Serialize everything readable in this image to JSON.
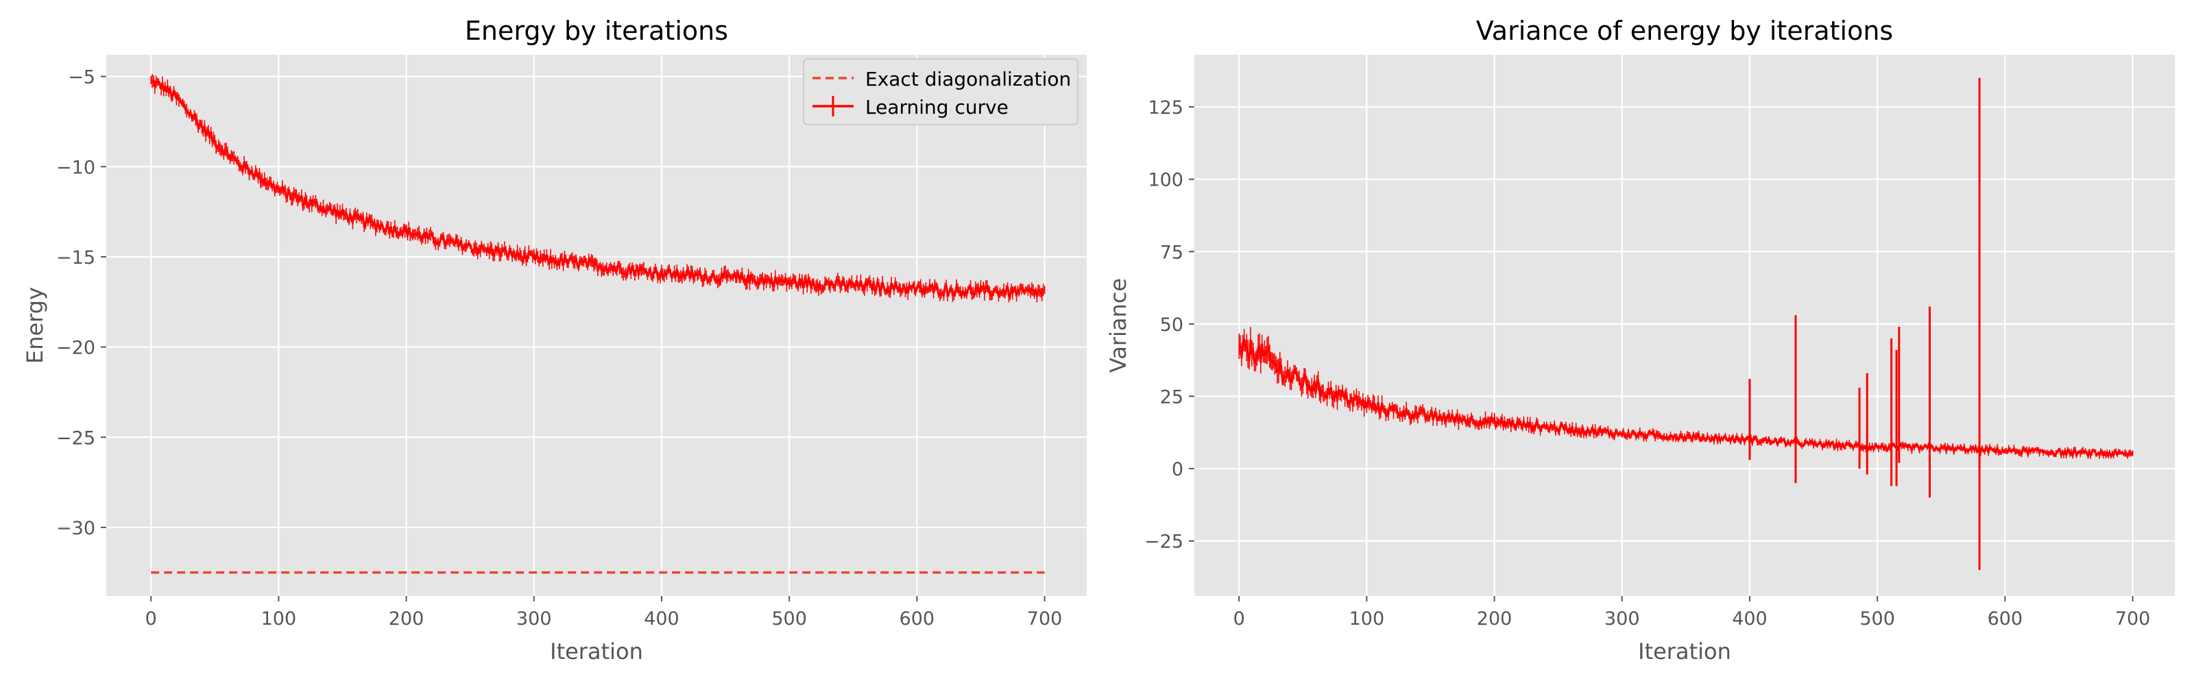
{
  "colors": {
    "figure_background": "#ffffff",
    "axes_background": "#e5e5e5",
    "grid": "#ffffff",
    "tick_text": "#555555",
    "title_text": "#000000",
    "series": "#ff0000",
    "exact_line": "#e24a33"
  },
  "chart_data": [
    {
      "type": "line",
      "title": "Energy by iterations",
      "xlabel": "Iteration",
      "ylabel": "Energy",
      "xlim": [
        -35,
        733
      ],
      "ylim": [
        -33.8,
        -3.8
      ],
      "xticks": [
        0,
        100,
        200,
        300,
        400,
        500,
        600,
        700
      ],
      "yticks": [
        -5,
        -10,
        -15,
        -20,
        -25,
        -30
      ],
      "ytick_labels": [
        "−5",
        "−10",
        "−15",
        "−20",
        "−25",
        "−30"
      ],
      "grid": true,
      "legend_position": "top-right",
      "legend": [
        "Exact diagonalization",
        "Learning curve"
      ],
      "series": [
        {
          "name": "Exact diagonalization",
          "style": "dashed",
          "x": [
            0,
            700
          ],
          "y": [
            -32.5,
            -32.5
          ]
        },
        {
          "name": "Learning curve",
          "style": "errorbar-line",
          "x": [
            0,
            10,
            20,
            30,
            40,
            50,
            60,
            70,
            80,
            90,
            100,
            120,
            140,
            160,
            180,
            200,
            220,
            240,
            260,
            280,
            300,
            330,
            360,
            400,
            440,
            480,
            520,
            560,
            600,
            650,
            700
          ],
          "y": [
            -5.3,
            -5.6,
            -6.2,
            -7.0,
            -7.8,
            -8.6,
            -9.3,
            -9.9,
            -10.3,
            -10.8,
            -11.3,
            -11.9,
            -12.4,
            -12.9,
            -13.3,
            -13.6,
            -14.0,
            -14.3,
            -14.6,
            -14.8,
            -15.1,
            -15.3,
            -15.6,
            -15.9,
            -16.1,
            -16.3,
            -16.5,
            -16.6,
            -16.8,
            -16.9,
            -17.0
          ],
          "noise_amplitude": 0.3
        }
      ]
    },
    {
      "type": "line",
      "title": "Variance of energy by iterations",
      "xlabel": "Iteration",
      "ylabel": "Variance",
      "xlim": [
        -35,
        733
      ],
      "ylim": [
        -44,
        143
      ],
      "xticks": [
        0,
        100,
        200,
        300,
        400,
        500,
        600,
        700
      ],
      "yticks": [
        125,
        100,
        75,
        50,
        25,
        0,
        -25
      ],
      "ytick_labels": [
        "125",
        "100",
        "75",
        "50",
        "25",
        "0",
        "−25"
      ],
      "grid": true,
      "series": [
        {
          "name": "",
          "style": "errorbar-line",
          "x": [
            0,
            10,
            20,
            30,
            40,
            50,
            60,
            80,
            100,
            120,
            150,
            200,
            250,
            300,
            350,
            400,
            450,
            500,
            550,
            600,
            650,
            700
          ],
          "y": [
            40,
            41,
            39,
            35,
            32,
            30,
            28,
            25,
            22,
            20,
            18,
            16,
            14,
            12,
            11,
            10,
            8.5,
            7.5,
            7,
            6.2,
            5.5,
            5
          ],
          "noise_amplitude": 2.5
        }
      ],
      "spikes": [
        {
          "x": 400,
          "high": 31,
          "low": 3
        },
        {
          "x": 436,
          "high": 53,
          "low": -5
        },
        {
          "x": 486,
          "high": 28,
          "low": 0
        },
        {
          "x": 492,
          "high": 33,
          "low": -2
        },
        {
          "x": 511,
          "high": 45,
          "low": -6
        },
        {
          "x": 515,
          "high": 41,
          "low": -6
        },
        {
          "x": 517,
          "high": 49,
          "low": 2
        },
        {
          "x": 541,
          "high": 56,
          "low": -10
        },
        {
          "x": 580,
          "high": 135,
          "low": -35
        }
      ]
    }
  ]
}
